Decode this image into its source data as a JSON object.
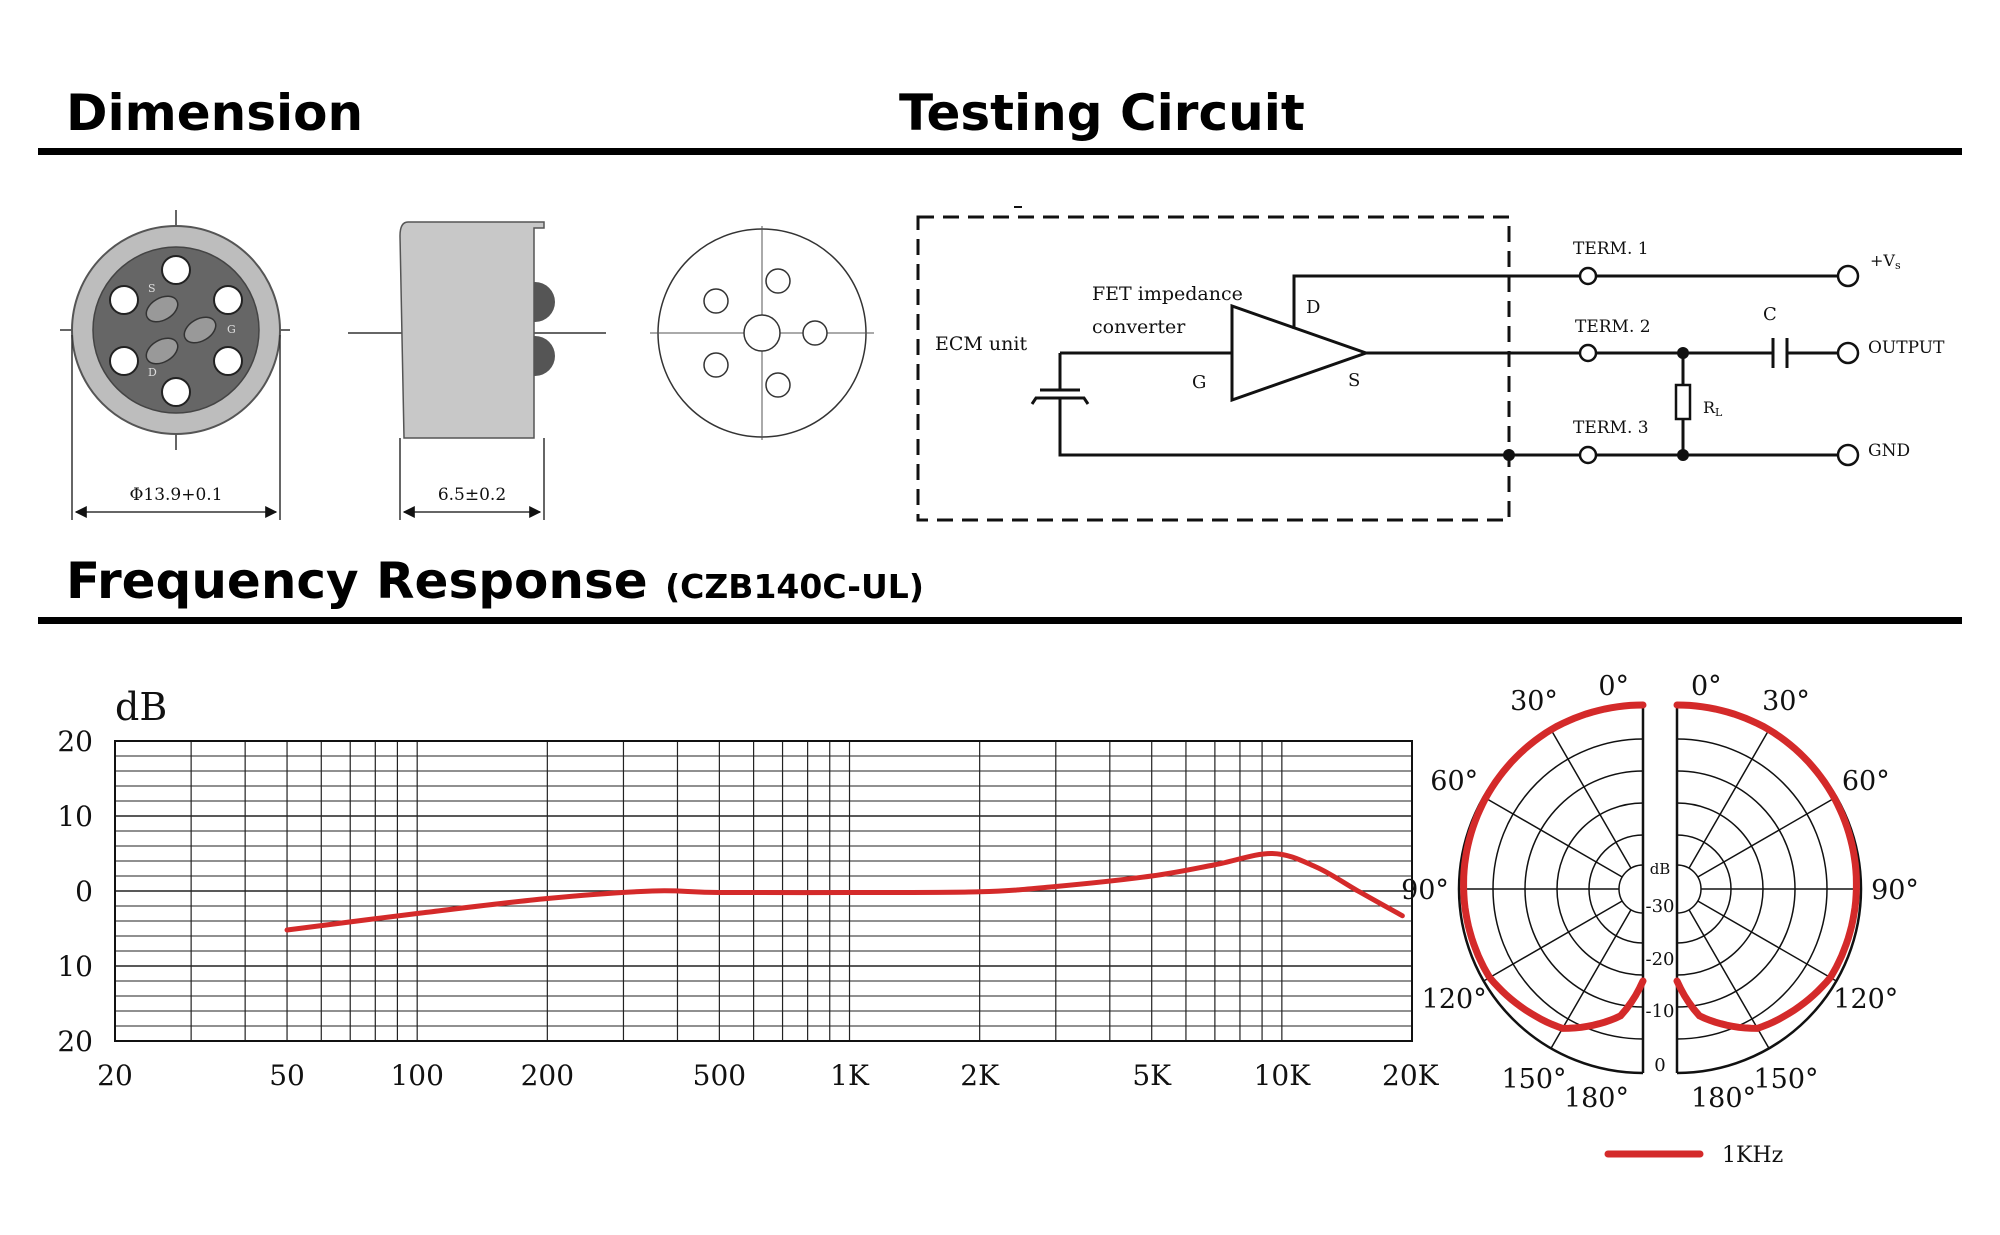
{
  "headings": {
    "dimension": "Dimension",
    "testing_circuit": "Testing Circuit",
    "frequency_response": "Frequency Response",
    "frequency_response_model": "(CZB140C-UL)"
  },
  "dimension": {
    "front_pins": [
      "S",
      "G",
      "D"
    ],
    "diameter_label": "Φ13.9+0.1",
    "height_label": "6.5±0.2"
  },
  "circuit": {
    "ecm_unit": "ECM unit",
    "fet_line1": "FET impedance",
    "fet_line2": "converter",
    "pin_d": "D",
    "pin_g": "G",
    "pin_s": "S",
    "term1": "TERM. 1",
    "term2": "TERM. 2",
    "term3": "TERM. 3",
    "cap": "C",
    "resistor": "R",
    "resistor_sub": "L",
    "vs_main": "+V",
    "vs_sub": "s",
    "output": "OUTPUT",
    "gnd": "GND"
  },
  "colors": {
    "curve": "#d42a2a",
    "line": "#111111",
    "ring": "#bdbdbd",
    "body": "#666666"
  },
  "chart_data": [
    {
      "type": "line",
      "title": "Frequency Response",
      "ylabel": "dB",
      "xscale": "log",
      "xlim": [
        20,
        20000
      ],
      "ylim": [
        -20,
        20
      ],
      "grid": true,
      "x_tick_labels": [
        {
          "x": 20,
          "label": "20"
        },
        {
          "x": 50,
          "label": "50"
        },
        {
          "x": 100,
          "label": "100"
        },
        {
          "x": 200,
          "label": "200"
        },
        {
          "x": 500,
          "label": "500"
        },
        {
          "x": 1000,
          "label": "1K"
        },
        {
          "x": 2000,
          "label": "2K"
        },
        {
          "x": 5000,
          "label": "5K"
        },
        {
          "x": 10000,
          "label": "10K"
        },
        {
          "x": 20000,
          "label": "20K"
        }
      ],
      "y_tick_labels": [
        {
          "y": 20,
          "label": "20"
        },
        {
          "y": 10,
          "label": "10"
        },
        {
          "y": 0,
          "label": "0"
        },
        {
          "y": -10,
          "label": "10"
        },
        {
          "y": -20,
          "label": "20"
        }
      ],
      "series": [
        {
          "color": "#d42a2a",
          "x": [
            50,
            100,
            200,
            350,
            500,
            1000,
            2000,
            3000,
            5000,
            7000,
            9500,
            12000,
            15000,
            19000
          ],
          "y": [
            -5.2,
            -3.0,
            -1.0,
            0,
            -0.2,
            -0.2,
            -0.1,
            0.6,
            2.0,
            3.5,
            5.0,
            3.2,
            0,
            -3.3
          ]
        }
      ]
    },
    {
      "type": "polar",
      "angle_labels_left": [
        "0°",
        "30°",
        "60°",
        "90°",
        "120°",
        "150°",
        "180°"
      ],
      "angle_labels_right": [
        "0°",
        "30°",
        "60°",
        "90°",
        "120°",
        "150°",
        "180°"
      ],
      "radial_labels": [
        "dB",
        "-30",
        "-20",
        "-10",
        "0"
      ],
      "legend": "1KHz",
      "series": [
        {
          "name": "1KHz",
          "color": "#d42a2a",
          "angles": [
            0,
            30,
            60,
            90,
            120,
            150,
            170,
            180
          ],
          "db": [
            0,
            0,
            -0.5,
            -1,
            -1.5,
            -5,
            -12,
            -20
          ]
        }
      ]
    }
  ]
}
